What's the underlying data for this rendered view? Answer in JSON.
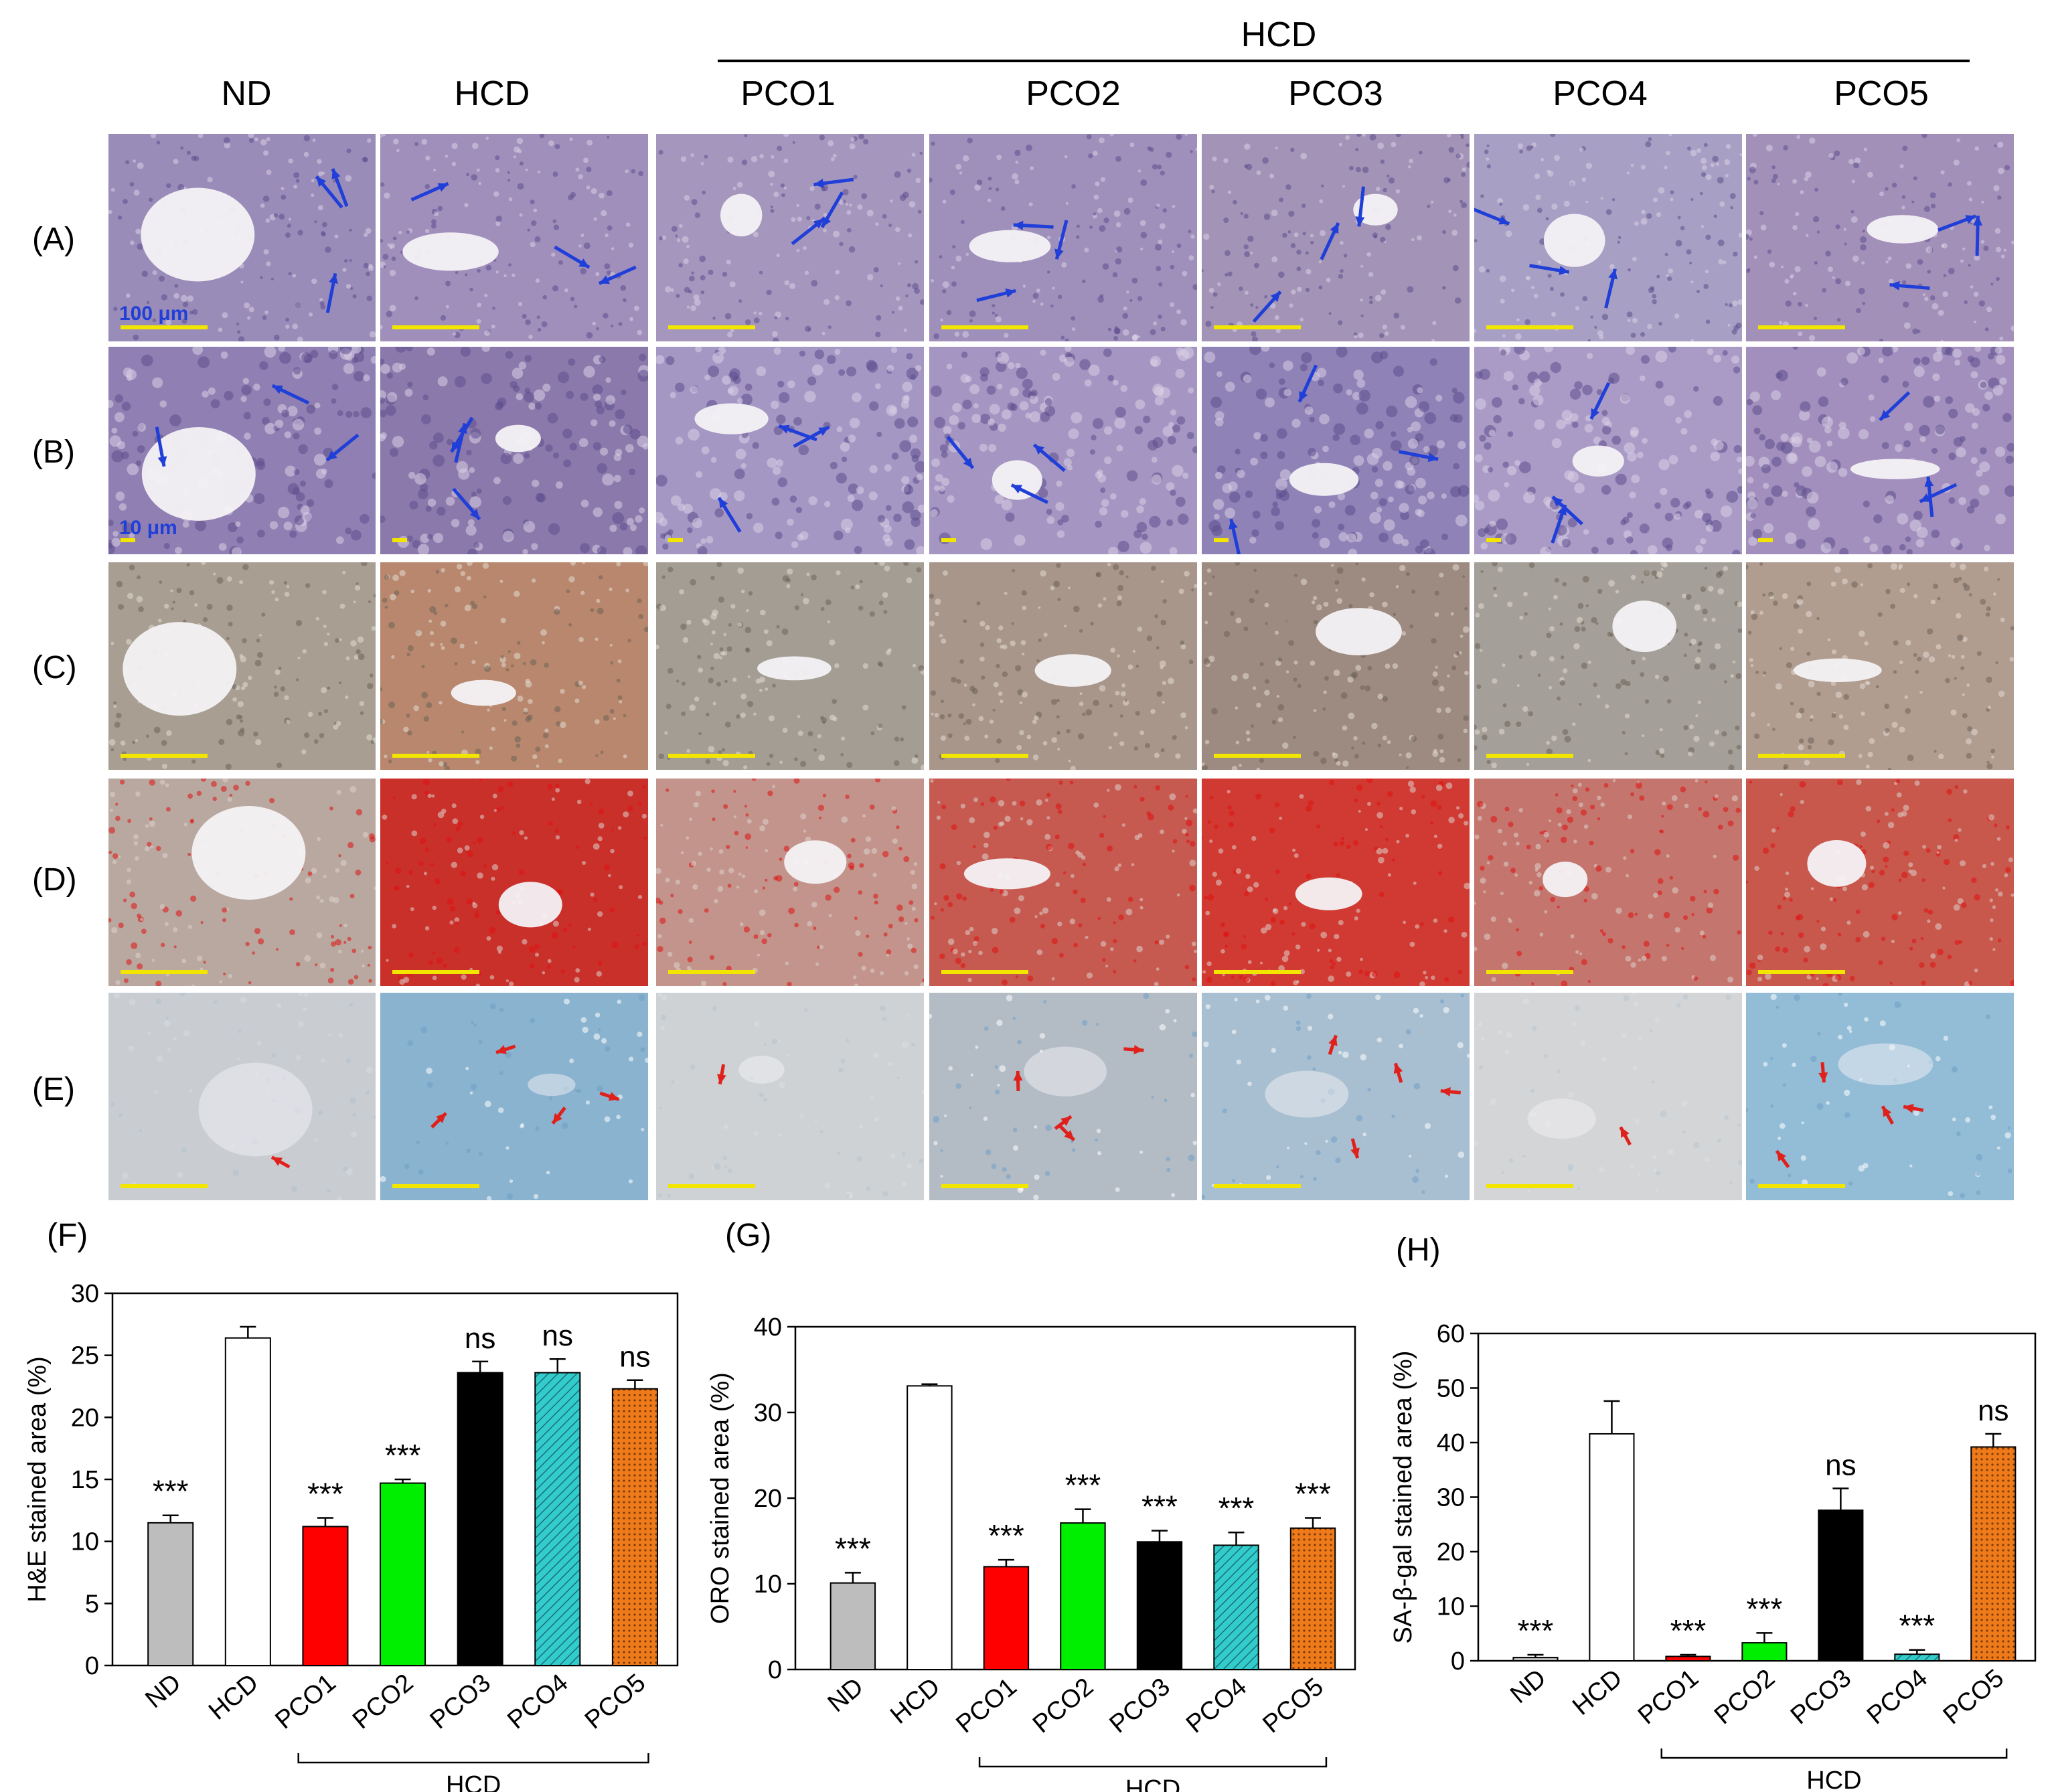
{
  "header": {
    "group_label": "HCD",
    "columns": [
      "ND",
      "HCD",
      "PCO1",
      "PCO2",
      "PCO3",
      "PCO4",
      "PCO5"
    ]
  },
  "rows": [
    {
      "label": "(A)",
      "scale_text": "100 μm",
      "stain": "he-low"
    },
    {
      "label": "(B)",
      "scale_text": "10 μm",
      "stain": "he-high"
    },
    {
      "label": "(C)",
      "scale_text": "",
      "stain": "oro-raw"
    },
    {
      "label": "(D)",
      "scale_text": "",
      "stain": "oro-red"
    },
    {
      "label": "(E)",
      "scale_text": "",
      "stain": "sabgal"
    }
  ],
  "colors": {
    "he_arrow": "#1f3fd8",
    "sabgal_arrow": "#e0201a",
    "scale_bar": "#f2e600",
    "nd": "#bdbdbd",
    "hcd": "#ffffff",
    "pco1": "#ff0000",
    "pco2": "#00ee00",
    "pco3": "#000000",
    "pco4": "#33cccc",
    "pco5": "#ee7a1a"
  },
  "chart_data": [
    {
      "panel_label": "(F)",
      "type": "bar",
      "categories": [
        "ND",
        "HCD",
        "PCO1",
        "PCO2",
        "PCO3",
        "PCO4",
        "PCO5"
      ],
      "values": [
        11.5,
        26.4,
        11.2,
        14.7,
        23.6,
        23.6,
        22.3
      ],
      "errors": [
        0.6,
        0.9,
        0.7,
        0.3,
        0.9,
        1.1,
        0.7
      ],
      "annotations": [
        "***",
        "",
        "***",
        "***",
        "ns",
        "ns",
        "ns"
      ],
      "ylabel": "H&E stained area (%)",
      "ylim": [
        0,
        30
      ],
      "yticks": [
        0,
        5,
        10,
        15,
        20,
        25,
        30
      ],
      "bracket_label": "HCD"
    },
    {
      "panel_label": "(G)",
      "type": "bar",
      "categories": [
        "ND",
        "HCD",
        "PCO1",
        "PCO2",
        "PCO3",
        "PCO4",
        "PCO5"
      ],
      "values": [
        10.1,
        33.1,
        12.0,
        17.1,
        14.9,
        14.5,
        16.5
      ],
      "errors": [
        1.2,
        0.2,
        0.8,
        1.6,
        1.3,
        1.5,
        1.2
      ],
      "annotations": [
        "***",
        "",
        "***",
        "***",
        "***",
        "***",
        "***"
      ],
      "ylabel": "ORO stained area (%)",
      "ylim": [
        0,
        40
      ],
      "yticks": [
        0,
        10,
        20,
        30,
        40
      ],
      "bracket_label": "HCD"
    },
    {
      "panel_label": "(H)",
      "type": "bar",
      "categories": [
        "ND",
        "HCD",
        "PCO1",
        "PCO2",
        "PCO3",
        "PCO4",
        "PCO5"
      ],
      "values": [
        0.6,
        41.6,
        0.8,
        3.3,
        27.6,
        1.2,
        39.2
      ],
      "errors": [
        0.5,
        6.0,
        0.3,
        1.8,
        4.0,
        0.8,
        2.4
      ],
      "annotations": [
        "***",
        "",
        "***",
        "***",
        "ns",
        "***",
        "ns"
      ],
      "ylabel": "SA-β-gal stained area (%)",
      "ylim": [
        0,
        60
      ],
      "yticks": [
        0,
        10,
        20,
        30,
        40,
        50,
        60
      ],
      "bracket_label": "HCD"
    }
  ]
}
